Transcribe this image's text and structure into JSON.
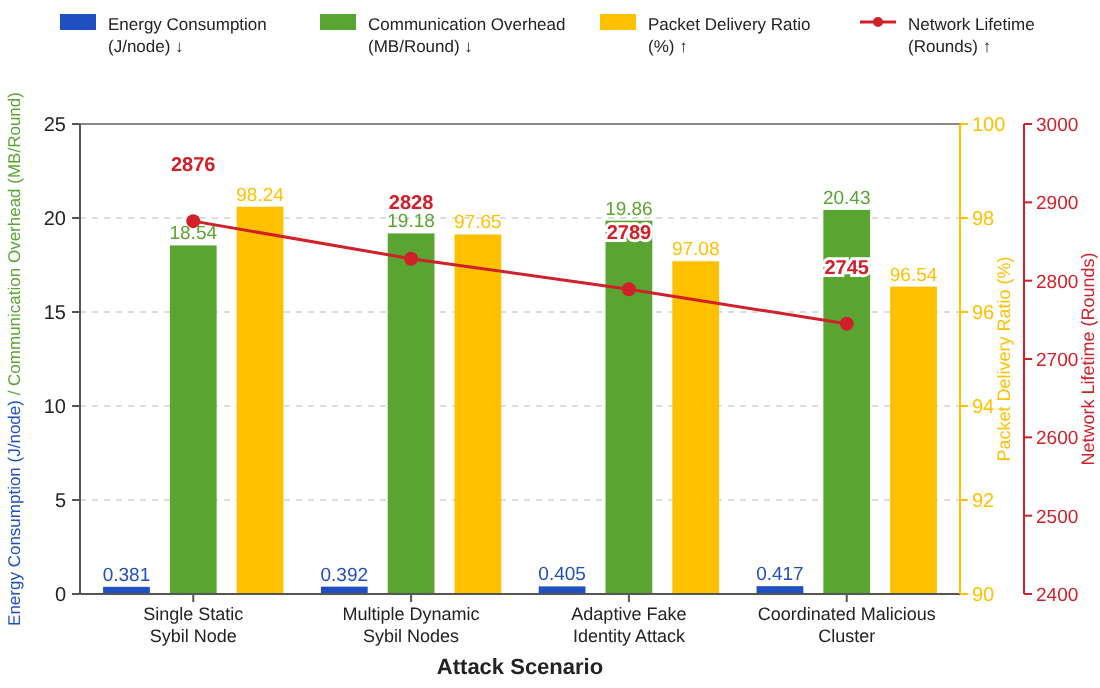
{
  "chart_data": {
    "type": "bar",
    "xlabel": "Attack Scenario",
    "ylabel": "Energy Consumption (J/node) / Communication Overhead (MB/Round)",
    "y2label": "Packet Delivery Ratio (%)",
    "y3label": "Network Lifetime (Rounds)",
    "categories": [
      "Single Static\nSybil Node",
      "Multiple Dynamic\nSybil Nodes",
      "Adaptive Fake\nIdentity Attack",
      "Coordinated Malicious\nCluster"
    ],
    "series": [
      {
        "name": "Energy Consumption\n(J/node) ↓",
        "color": "#1f4fc1",
        "values": [
          0.381,
          0.392,
          0.405,
          0.417
        ]
      },
      {
        "name": "Communication Overhead\n(MB/Round) ↓",
        "color": "#5aa532",
        "values": [
          18.54,
          19.18,
          19.86,
          20.43
        ]
      },
      {
        "name": "Packet Delivery Ratio\n(%) ↑",
        "color": "#ffc000",
        "axis": "y2",
        "values": [
          98.24,
          97.65,
          97.08,
          96.54
        ]
      },
      {
        "name": "Network Lifetime\n(Rounds) ↑",
        "color": "#d0202a",
        "type": "line",
        "axis": "y3",
        "marker": "circle",
        "values": [
          2876,
          2828,
          2789,
          2745
        ]
      }
    ],
    "ylim": [
      0,
      25
    ],
    "yticks": [
      0,
      5,
      10,
      15,
      20,
      25
    ],
    "y2lim": [
      90,
      100
    ],
    "y2ticks": [
      90,
      92,
      94,
      96,
      98,
      100
    ],
    "y3lim": [
      2400,
      3000
    ],
    "y3ticks": [
      2400,
      2500,
      2600,
      2700,
      2800,
      2900,
      3000
    ],
    "grid": "y",
    "legend": "top",
    "data_labels": true
  }
}
